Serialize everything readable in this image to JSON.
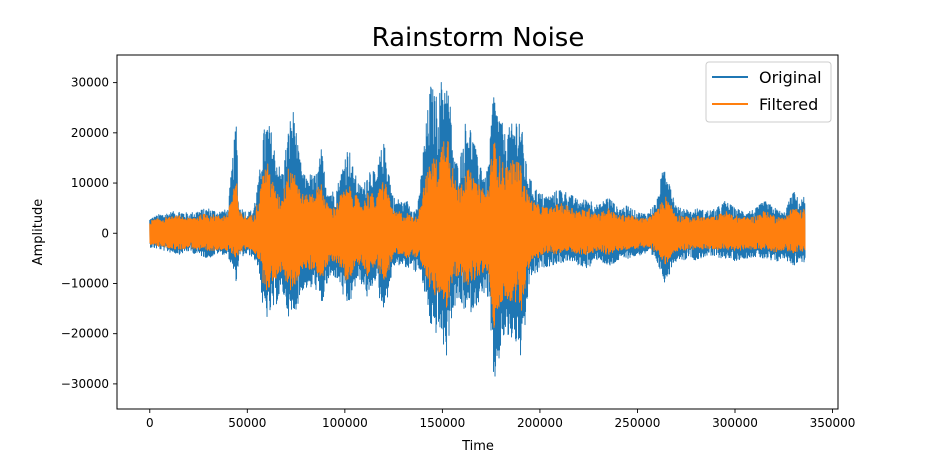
{
  "chart_data": {
    "type": "line",
    "title": "Rainstorm Noise",
    "xlabel": "Time",
    "ylabel": "Amplitude",
    "xlim": [
      -16800,
      352800
    ],
    "ylim": [
      -35000,
      35500
    ],
    "xticks": [
      0,
      50000,
      100000,
      150000,
      200000,
      250000,
      300000,
      350000
    ],
    "xtick_labels": [
      "0",
      "50000",
      "100000",
      "150000",
      "200000",
      "250000",
      "300000",
      "350000"
    ],
    "yticks": [
      -30000,
      -20000,
      -10000,
      0,
      10000,
      20000,
      30000
    ],
    "ytick_labels": [
      "−30000",
      "−20000",
      "−10000",
      "0",
      "10000",
      "20000",
      "30000"
    ],
    "grid": false,
    "legend_position": "upper right",
    "series": [
      {
        "name": "Original",
        "color": "#1f77b4",
        "x": [
          0,
          5000,
          10000,
          15000,
          20000,
          25000,
          30000,
          35000,
          40000,
          44500,
          45500,
          50000,
          53000,
          56000,
          58000,
          60000,
          62000,
          64000,
          66000,
          68000,
          70000,
          72000,
          74000,
          76000,
          78000,
          80000,
          82000,
          84000,
          86000,
          88000,
          90000,
          92000,
          94000,
          96000,
          98000,
          100000,
          102000,
          104000,
          106000,
          108000,
          110000,
          112000,
          114000,
          116000,
          118000,
          120000,
          122000,
          124000,
          126000,
          128000,
          130000,
          132000,
          134000,
          136000,
          138000,
          140000,
          142000,
          144000,
          146000,
          148000,
          150000,
          152000,
          154000,
          156000,
          158000,
          160000,
          162000,
          164000,
          166000,
          168000,
          170000,
          172000,
          174000,
          176000,
          178000,
          180000,
          182000,
          184000,
          186000,
          188000,
          190000,
          192000,
          194000,
          196000,
          198000,
          200000,
          205000,
          210000,
          215000,
          220000,
          225000,
          230000,
          235000,
          240000,
          245000,
          250000,
          255000,
          260000,
          262000,
          264000,
          266000,
          268000,
          270000,
          272000,
          274000,
          276000,
          278000,
          280000,
          285000,
          290000,
          295000,
          300000,
          305000,
          310000,
          315000,
          320000,
          325000,
          330000,
          333000,
          336000
        ],
        "upper": [
          3000,
          3800,
          4200,
          4500,
          4000,
          4600,
          5000,
          4400,
          4800,
          23500,
          5500,
          4200,
          4800,
          11000,
          20000,
          22500,
          21000,
          17000,
          14000,
          12000,
          18000,
          23000,
          25000,
          17000,
          13000,
          11000,
          12000,
          11500,
          12500,
          17000,
          11000,
          9000,
          8500,
          9500,
          12000,
          16000,
          17500,
          13500,
          11000,
          9500,
          10000,
          13000,
          13500,
          11000,
          16000,
          18000,
          15000,
          8500,
          6500,
          7000,
          6000,
          6500,
          5500,
          4500,
          7000,
          16000,
          23000,
          30000,
          28000,
          27000,
          32000,
          31000,
          26000,
          15000,
          14000,
          17000,
          23000,
          22000,
          19000,
          15000,
          14500,
          11000,
          15000,
          29000,
          25500,
          23000,
          20000,
          21000,
          22000,
          23500,
          24000,
          16000,
          12000,
          10000,
          9000,
          8000,
          7500,
          9000,
          8000,
          6500,
          7000,
          5500,
          7500,
          5000,
          5500,
          4200,
          4000,
          6500,
          11000,
          14000,
          12500,
          8000,
          5500,
          5000,
          5200,
          4700,
          4200,
          5000,
          4500,
          4800,
          6500,
          5000,
          4500,
          4700,
          6500,
          5200,
          4000,
          8500,
          6500,
          7500
        ],
        "lower": [
          -2800,
          -3200,
          -3800,
          -4200,
          -3600,
          -4400,
          -5000,
          -4000,
          -4500,
          -10000,
          -5000,
          -4200,
          -4800,
          -7500,
          -16000,
          -17000,
          -16000,
          -15000,
          -13000,
          -12000,
          -15000,
          -18000,
          -16000,
          -14000,
          -11500,
          -11000,
          -11500,
          -10500,
          -12000,
          -15000,
          -11000,
          -9500,
          -8500,
          -9500,
          -10500,
          -15000,
          -14500,
          -12500,
          -9500,
          -10000,
          -11000,
          -14000,
          -10500,
          -9000,
          -14000,
          -15000,
          -12500,
          -8000,
          -6000,
          -6500,
          -6500,
          -7500,
          -6000,
          -8000,
          -7000,
          -11000,
          -14000,
          -19000,
          -20500,
          -19000,
          -22000,
          -25000,
          -18000,
          -15000,
          -13500,
          -15000,
          -15500,
          -16000,
          -15000,
          -14000,
          -13500,
          -11000,
          -15000,
          -31500,
          -27000,
          -24000,
          -20000,
          -22000,
          -21000,
          -22500,
          -25000,
          -21000,
          -11000,
          -8000,
          -8500,
          -7000,
          -6500,
          -6000,
          -5500,
          -6500,
          -7000,
          -5000,
          -7000,
          -5500,
          -5000,
          -4500,
          -4000,
          -6000,
          -8000,
          -10000,
          -8500,
          -6000,
          -5500,
          -5000,
          -5500,
          -4500,
          -5000,
          -5500,
          -4500,
          -4800,
          -5000,
          -5500,
          -5000,
          -4700,
          -5200,
          -6000,
          -5000,
          -6500,
          -5500,
          -6000
        ]
      },
      {
        "name": "Filtered",
        "color": "#ff7f0e",
        "x": [
          0,
          5000,
          10000,
          15000,
          20000,
          25000,
          30000,
          35000,
          40000,
          44500,
          45500,
          50000,
          53000,
          56000,
          58000,
          60000,
          62000,
          64000,
          66000,
          68000,
          70000,
          72000,
          74000,
          76000,
          78000,
          80000,
          82000,
          84000,
          86000,
          88000,
          90000,
          92000,
          94000,
          96000,
          98000,
          100000,
          102000,
          104000,
          106000,
          108000,
          110000,
          112000,
          114000,
          116000,
          118000,
          120000,
          122000,
          124000,
          126000,
          128000,
          130000,
          132000,
          134000,
          136000,
          138000,
          140000,
          142000,
          144000,
          146000,
          148000,
          150000,
          152000,
          154000,
          156000,
          158000,
          160000,
          162000,
          164000,
          166000,
          168000,
          170000,
          172000,
          174000,
          176000,
          178000,
          180000,
          182000,
          184000,
          186000,
          188000,
          190000,
          192000,
          194000,
          196000,
          198000,
          200000,
          205000,
          210000,
          215000,
          220000,
          225000,
          230000,
          235000,
          240000,
          245000,
          250000,
          255000,
          260000,
          262000,
          264000,
          266000,
          268000,
          270000,
          272000,
          274000,
          276000,
          278000,
          280000,
          285000,
          290000,
          295000,
          300000,
          305000,
          310000,
          315000,
          320000,
          325000,
          330000,
          333000,
          336000
        ],
        "upper": [
          2500,
          3000,
          3200,
          3500,
          3000,
          3600,
          4000,
          3500,
          3800,
          12000,
          4500,
          3200,
          3800,
          7000,
          12000,
          14500,
          12000,
          9000,
          7500,
          7000,
          12000,
          14000,
          13500,
          10000,
          8000,
          7500,
          8000,
          8500,
          9000,
          10500,
          6500,
          5500,
          5000,
          6000,
          8000,
          8500,
          9500,
          8500,
          7500,
          6000,
          6500,
          8500,
          8000,
          6500,
          9500,
          11000,
          9000,
          5000,
          4000,
          4500,
          3500,
          4000,
          3500,
          3000,
          4500,
          9500,
          12000,
          14000,
          15500,
          14000,
          18500,
          22000,
          18000,
          11000,
          9500,
          11000,
          13000,
          12500,
          11000,
          9500,
          10000,
          8000,
          10000,
          19500,
          16500,
          15000,
          13500,
          14000,
          14500,
          15000,
          14000,
          10000,
          8000,
          6500,
          6000,
          5500,
          5000,
          6000,
          5500,
          4500,
          5000,
          4000,
          5000,
          3500,
          3800,
          3000,
          3000,
          4500,
          6000,
          7500,
          7000,
          5000,
          3800,
          3500,
          3600,
          3200,
          3000,
          3500,
          3200,
          3300,
          4500,
          3500,
          3200,
          3300,
          4500,
          3600,
          3000,
          5500,
          4500,
          5000
        ],
        "lower": [
          -2300,
          -2700,
          -3000,
          -3300,
          -2800,
          -3400,
          -3800,
          -3200,
          -3600,
          -5000,
          -4000,
          -3000,
          -3600,
          -5500,
          -10000,
          -11500,
          -10500,
          -9500,
          -8000,
          -7500,
          -10000,
          -11500,
          -10500,
          -9000,
          -7500,
          -7000,
          -7500,
          -7000,
          -8000,
          -9500,
          -7000,
          -6000,
          -5500,
          -6000,
          -7000,
          -9500,
          -9000,
          -8000,
          -6000,
          -6500,
          -7000,
          -9000,
          -7000,
          -6000,
          -9000,
          -9500,
          -8000,
          -5500,
          -4000,
          -4500,
          -4500,
          -5000,
          -4000,
          -5000,
          -4500,
          -7000,
          -9000,
          -12000,
          -13000,
          -12000,
          -13500,
          -15500,
          -11500,
          -9500,
          -8500,
          -9500,
          -10000,
          -10500,
          -9500,
          -9000,
          -8500,
          -7000,
          -9500,
          -19500,
          -17000,
          -15000,
          -12500,
          -14000,
          -13500,
          -14000,
          -16000,
          -13000,
          -7000,
          -5500,
          -5500,
          -4500,
          -4200,
          -4000,
          -3800,
          -4200,
          -4500,
          -3300,
          -4500,
          -3500,
          -3300,
          -3000,
          -2800,
          -4000,
          -5000,
          -6500,
          -5500,
          -4000,
          -3500,
          -3300,
          -3500,
          -3000,
          -3200,
          -3500,
          -3000,
          -3200,
          -3300,
          -3500,
          -3300,
          -3100,
          -3400,
          -3800,
          -3300,
          -4000,
          -3500,
          -3800
        ]
      }
    ]
  }
}
